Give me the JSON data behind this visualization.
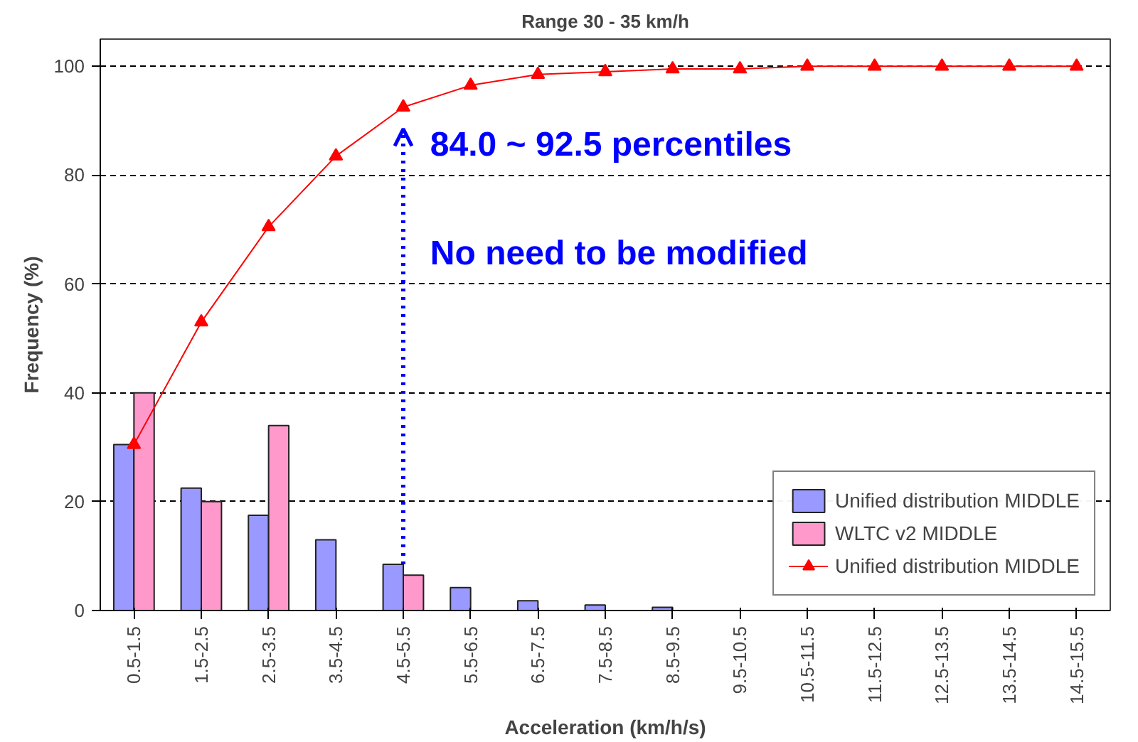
{
  "chart_data": {
    "type": "bar",
    "title": "Range 30 - 35 km/h",
    "xlabel": "Acceleration (km/h/s)",
    "ylabel": "Frequency (%)",
    "categories": [
      "0.5-1.5",
      "1.5-2.5",
      "2.5-3.5",
      "3.5-4.5",
      "4.5-5.5",
      "5.5-6.5",
      "6.5-7.5",
      "7.5-8.5",
      "8.5-9.5",
      "9.5-10.5",
      "10.5-11.5",
      "11.5-12.5",
      "12.5-13.5",
      "13.5-14.5",
      "14.5-15.5"
    ],
    "series": [
      {
        "name": "Unified distribution MIDDLE",
        "color": "#9999ff",
        "values": [
          30.5,
          22.5,
          17.5,
          13,
          8.5,
          4.2,
          1.8,
          1.0,
          0.6,
          null,
          null,
          null,
          null,
          null,
          null
        ]
      },
      {
        "name": "WLTC v2 MIDDLE",
        "color": "#ff99cc",
        "values": [
          40,
          20,
          34,
          null,
          6.5,
          null,
          null,
          null,
          null,
          null,
          null,
          null,
          null,
          null,
          null
        ]
      },
      {
        "name": "Unified distribution MIDDLE",
        "type": "line",
        "color": "#ff0000",
        "marker": "triangle",
        "values": [
          30.5,
          53,
          70.5,
          83.5,
          92.5,
          96.5,
          98.5,
          99,
          99.5,
          99.5,
          100,
          100,
          100,
          100,
          100
        ]
      }
    ],
    "ylim": [
      0,
      105
    ],
    "yticks": [
      0,
      20,
      40,
      60,
      80,
      100
    ],
    "grid": "y",
    "legend": "bottom right",
    "annotations": [
      {
        "text": "84.0 ~ 92.5 percentiles",
        "x": "4.5-5.5",
        "y": 92.5
      },
      "No need to be modified"
    ]
  }
}
